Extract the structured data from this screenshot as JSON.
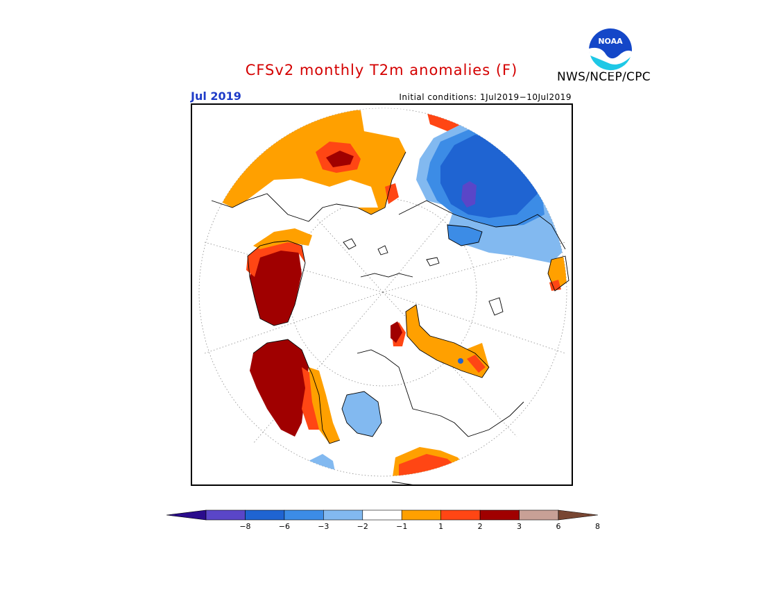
{
  "header": {
    "title": "CFSv2 monthly T2m anomalies (F)",
    "month": "Jul 2019",
    "initial_conditions": "Initial conditions: 1Jul2019−10Jul2019",
    "agency": "NWS/NCEP/CPC",
    "logo_text": "NOAA",
    "title_color": "#d40000",
    "month_color": "#1f3cc8"
  },
  "map": {
    "projection": "north polar stereographic",
    "variable": "2m temperature anomaly",
    "units": "F"
  },
  "colorbar": {
    "tick_labels": [
      "−8",
      "−6",
      "−3",
      "−2",
      "−1",
      "1",
      "2",
      "3",
      "6",
      "8"
    ],
    "colors": [
      "#2a0c8c",
      "#5a46c8",
      "#1f64d2",
      "#3c8ce6",
      "#82b9f0",
      "#ffffff",
      "#ffa000",
      "#ff4614",
      "#a00000",
      "#c8a096",
      "#784632"
    ]
  },
  "icons": {
    "logo": "noaa-logo-icon"
  }
}
